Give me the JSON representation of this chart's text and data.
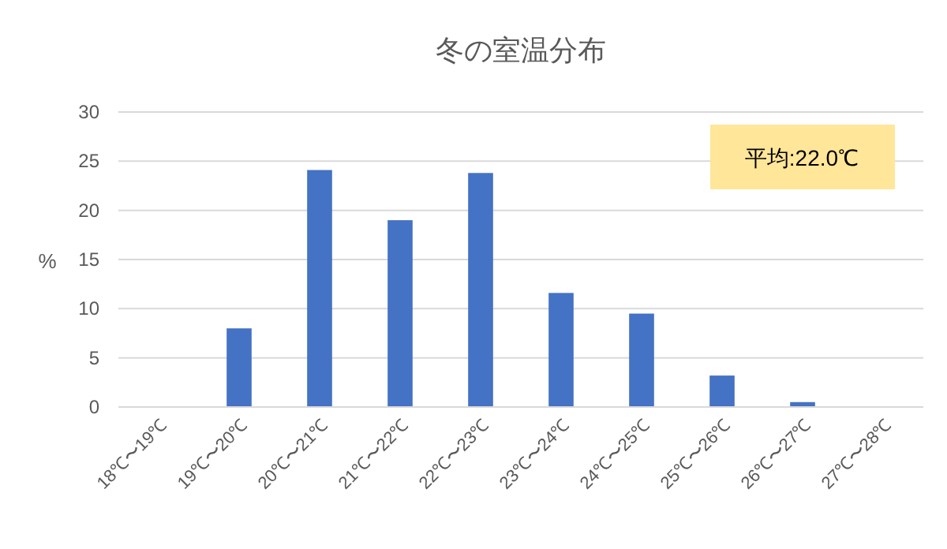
{
  "chart_data": {
    "type": "bar",
    "title": "冬の室温分布",
    "ylabel": "%",
    "categories": [
      "18℃〜19℃",
      "19℃〜20℃",
      "20℃〜21℃",
      "21℃〜22℃",
      "22℃〜23℃",
      "23℃〜24℃",
      "24℃〜25℃",
      "25℃〜26℃",
      "26℃〜27℃",
      "27℃〜28℃"
    ],
    "values": [
      0,
      8,
      24.1,
      19,
      23.8,
      11.6,
      9.5,
      3.2,
      0.5,
      0
    ],
    "color": "#4472c4",
    "ylim": [
      0,
      30
    ],
    "yticks": [
      0,
      5,
      10,
      15,
      20,
      25,
      30
    ],
    "grid": "y",
    "annotations": [
      "平均:22.0℃"
    ]
  }
}
